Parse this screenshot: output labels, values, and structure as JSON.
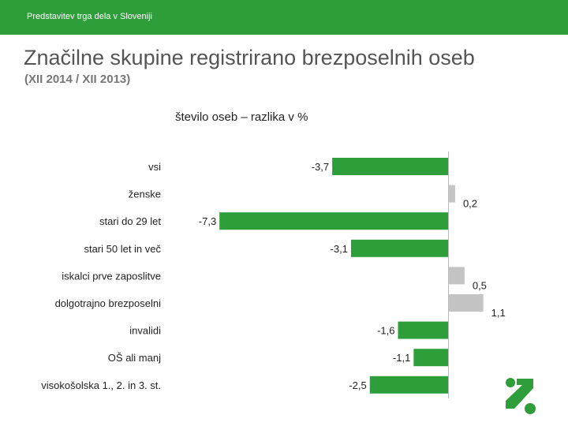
{
  "header": {
    "text": "Predstavitev trga dela v Sloveniji"
  },
  "title": "Značilne skupine registrirano brezposelnih oseb",
  "subtitle": "(XII 2014 / XII 2013)",
  "colors": {
    "header": "#2e9e3b",
    "negative": "#2e9e3b",
    "positive": "#c4c4c4"
  },
  "chart_data": {
    "type": "bar",
    "orientation": "horizontal",
    "title": "število oseb – razlika v %",
    "xlabel": "",
    "ylabel": "",
    "grid": false,
    "legend": "none",
    "xlim": [
      -8.5,
      2.0
    ],
    "categories": [
      "vsi",
      "ženske",
      "stari do 29 let",
      "stari 50 let in več",
      "iskalci prve zaposlitve",
      "dolgotrajno brezposelni",
      "invalidi",
      "OŠ ali manj",
      "visokošolska 1., 2. in 3. st."
    ],
    "values": [
      -3.7,
      0.2,
      -7.3,
      -3.1,
      0.5,
      1.1,
      -1.6,
      -1.1,
      -2.5
    ],
    "value_labels": [
      "-3,7",
      "0,2",
      "-7,3",
      "-3,1",
      "0,5",
      "1,1",
      "-1,6",
      "-1,1",
      "-2,5"
    ]
  }
}
